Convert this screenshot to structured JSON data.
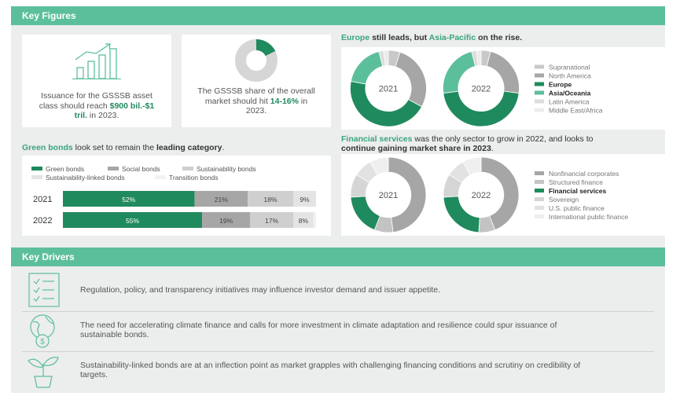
{
  "key_figures": {
    "title": "Key Figures",
    "cards": [
      {
        "text": [
          "Issuance for the GSSSB asset class should reach ",
          "$900 bil.-$1 tril.",
          " in 2023."
        ]
      },
      {
        "text": [
          "The GSSSB share of the overall market should hit ",
          "14-16%",
          " in 2023."
        ]
      }
    ]
  },
  "chart_data": [
    {
      "type": "donut",
      "title": [
        "Europe",
        " still leads, but ",
        "Asia-Pacific",
        " on the rise."
      ],
      "categories": [
        "Supranational",
        "North America",
        "Europe",
        "Asia/Oceania",
        "Latin America",
        "Middle East/Africa"
      ],
      "colors": [
        "#c8c8c8",
        "#a6a6a6",
        "#1f8a5e",
        "#5cbf9b",
        "#dcdcdc",
        "#ececec"
      ],
      "highlight": [
        2,
        3
      ],
      "series": [
        {
          "name": "2021",
          "values": [
            5,
            28,
            45,
            18,
            2,
            2
          ]
        },
        {
          "name": "2022",
          "values": [
            4,
            23,
            46,
            23,
            2,
            2
          ]
        }
      ]
    },
    {
      "type": "bar",
      "title": [
        "Green bonds",
        " look set to remain the ",
        "leading category",
        "."
      ],
      "categories": [
        "2021",
        "2022"
      ],
      "xlim": [
        0,
        100
      ],
      "series": [
        {
          "name": "Green bonds",
          "color": "#1f8a5e",
          "values": [
            52,
            55
          ],
          "value_labels": [
            "52%",
            "55%"
          ]
        },
        {
          "name": "Social bonds",
          "color": "#a6a6a6",
          "values": [
            21,
            19
          ],
          "value_labels": [
            "21%",
            "19%"
          ]
        },
        {
          "name": "Sustainability bonds",
          "color": "#cfcfcf",
          "values": [
            18,
            17
          ],
          "value_labels": [
            "18%",
            "17%"
          ]
        },
        {
          "name": "Sustainability-linked bonds",
          "color": "#e4e4e4",
          "values": [
            9,
            8
          ],
          "value_labels": [
            "9%",
            "8%"
          ]
        },
        {
          "name": "Transition bonds",
          "color": "#f2f2f2",
          "values": [
            0,
            1
          ]
        }
      ]
    },
    {
      "type": "donut",
      "title": [
        "Financial services",
        " was the only sector to grow in 2022, and looks to ",
        "continue gaining market share in 2023",
        "."
      ],
      "categories": [
        "Nonfinancial corporates",
        "Structured finance",
        "Financial services",
        "Sovereign",
        "U.S. public finance",
        "International public finance"
      ],
      "colors": [
        "#a6a6a6",
        "#c3c3c3",
        "#1f8a5e",
        "#d5d5d5",
        "#e2e2e2",
        "#efefef"
      ],
      "highlight": [
        2
      ],
      "series": [
        {
          "name": "2021",
          "values": [
            48,
            8,
            18,
            10,
            8,
            8
          ]
        },
        {
          "name": "2022",
          "values": [
            44,
            7,
            23,
            10,
            8,
            8
          ]
        }
      ]
    }
  ],
  "key_drivers": {
    "title": "Key Drivers",
    "items": [
      "Regulation, policy, and transparency initiatives may influence investor demand and issuer appetite.",
      "The need for accelerating climate finance and calls for more investment in climate adaptation and resilience could spur issuance of sustainable bonds.",
      "Sustainability-linked bonds are at an inflection point as market grapples with challenging financing conditions and scrutiny on credibility of targets."
    ]
  }
}
